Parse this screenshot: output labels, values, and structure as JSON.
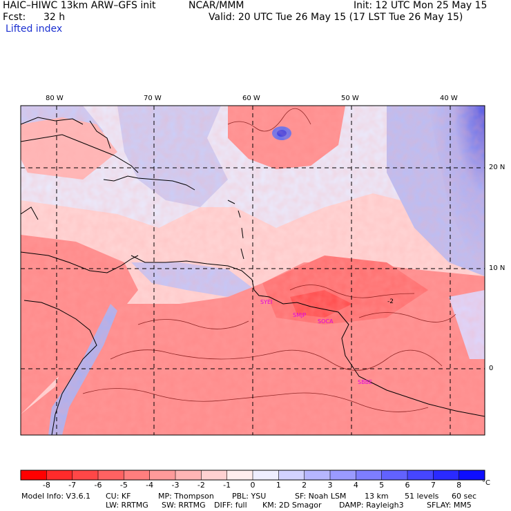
{
  "header": {
    "model": "HAIC–HIWC 13km ARW–GFS init",
    "center": "NCAR/MMM",
    "init": "Init: 12 UTC Mon 25 May 15",
    "fcst_label": "Fcst:",
    "fcst_value": "32 h",
    "valid": "Valid: 20 UTC Tue 26 May 15 (17 LST Tue 26 May 15)",
    "field": "Lifted index"
  },
  "map": {
    "lon_labels": [
      "80 W",
      "70 W",
      "60 W",
      "50 W",
      "40 W"
    ],
    "lat_labels": [
      "20 N",
      "10 N",
      "0"
    ],
    "stations": [
      "SYEI",
      "SMJP",
      "SOCA",
      "SBBE"
    ],
    "contour_label": "-2",
    "colors": {
      "neg": "#ee1c1c",
      "pos": "#1c1cee",
      "coast": "#000000"
    }
  },
  "colorbar": {
    "ticks": [
      "-8",
      "-7",
      "-6",
      "-5",
      "-4",
      "-3",
      "-2",
      "-1",
      "0",
      "1",
      "2",
      "3",
      "4",
      "5",
      "6",
      "7",
      "8"
    ],
    "unit": "°C",
    "colors": [
      "#ff0000",
      "#ff2b2b",
      "#ff4747",
      "#ff6262",
      "#ff7e7e",
      "#ff9a9a",
      "#ffb5b5",
      "#ffd1d1",
      "#ffeded",
      "#eeeeff",
      "#d2d2ff",
      "#b6b6ff",
      "#9a9aff",
      "#7e7eff",
      "#6262ff",
      "#4646ff",
      "#2a2aff",
      "#0e0eff"
    ]
  },
  "footer": {
    "line1": [
      "Model Info: V3.6.1",
      "CU: KF",
      "MP: Thompson",
      "PBL: YSU",
      "SF: Noah LSM",
      "13 km",
      "51 levels",
      "60 sec"
    ],
    "line2": [
      "LW: RRTMG",
      "SW: RRTMG",
      "DIFF: full",
      "KM: 2D Smagor",
      "DAMP: Rayleigh3",
      "SFLAY: MM5"
    ]
  }
}
